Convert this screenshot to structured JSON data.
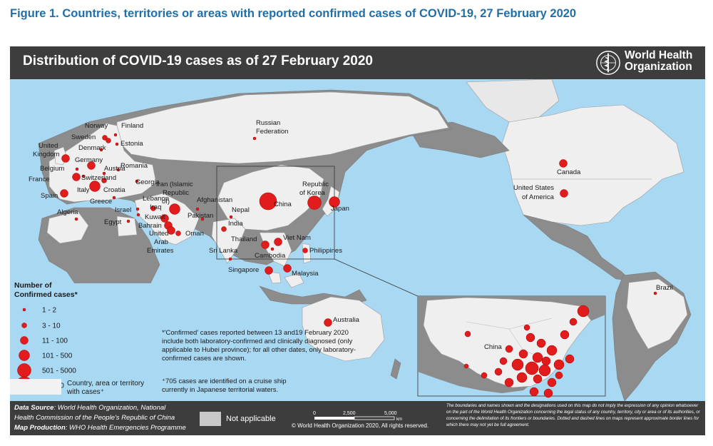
{
  "figure_title": "Figure 1. Countries, territories or areas with reported confirmed cases of COVID-19, 27 February 2020",
  "map_title": "Distribution of COVID-19 cases as of 27 February 2020",
  "who": {
    "line1": "World Health",
    "line2": "Organization"
  },
  "countries": [
    {
      "name": "Norway",
      "size": "3-10"
    },
    {
      "name": "Finland",
      "size": "1-2"
    },
    {
      "name": "Sweden",
      "size": "3-10"
    },
    {
      "name": "Estonia",
      "size": "1-2"
    },
    {
      "name": "Russian Federation",
      "size": "1-2"
    },
    {
      "name": "Denmark",
      "size": "1-2"
    },
    {
      "name": "United Kingdom",
      "size": "11-100"
    },
    {
      "name": "Germany",
      "size": "11-100"
    },
    {
      "name": "Belgium",
      "size": "1-2"
    },
    {
      "name": "Austria",
      "size": "1-2"
    },
    {
      "name": "Romania",
      "size": "1-2"
    },
    {
      "name": "Switzerland",
      "size": "1-2"
    },
    {
      "name": "France",
      "size": "11-100"
    },
    {
      "name": "Georgia",
      "size": "1-2"
    },
    {
      "name": "Italy",
      "size": "101-500"
    },
    {
      "name": "Croatia",
      "size": "3-10"
    },
    {
      "name": "Spain",
      "size": "11-100"
    },
    {
      "name": "Greece",
      "size": "1-2"
    },
    {
      "name": "Iran (Islamic Republic of)",
      "size": "101-500"
    },
    {
      "name": "Afghanistan",
      "size": "1-2"
    },
    {
      "name": "Lebanon",
      "size": "1-2"
    },
    {
      "name": "Israel",
      "size": "1-2"
    },
    {
      "name": "Iraq",
      "size": "3-10"
    },
    {
      "name": "Kuwait",
      "size": "11-100"
    },
    {
      "name": "Bahrain",
      "size": "11-100"
    },
    {
      "name": "Pakistan",
      "size": "1-2"
    },
    {
      "name": "Oman",
      "size": "3-10"
    },
    {
      "name": "United Arab Emirates",
      "size": "11-100"
    },
    {
      "name": "Egypt",
      "size": "1-2"
    },
    {
      "name": "Algeria",
      "size": "1-2"
    },
    {
      "name": "Nepal",
      "size": "1-2"
    },
    {
      "name": "India",
      "size": "3-10"
    },
    {
      "name": "China",
      "size": "> 5000"
    },
    {
      "name": "Republic of Korea",
      "size": "501-5000"
    },
    {
      "name": "Japan",
      "size": "101-500"
    },
    {
      "name": "Thailand",
      "size": "11-100"
    },
    {
      "name": "Viet Nam",
      "size": "11-100"
    },
    {
      "name": "Cambodia",
      "size": "1-2"
    },
    {
      "name": "Philippines",
      "size": "3-10"
    },
    {
      "name": "Sri Lanka",
      "size": "1-2"
    },
    {
      "name": "Singapore",
      "size": "11-100"
    },
    {
      "name": "Malaysia",
      "size": "11-100"
    },
    {
      "name": "Australia",
      "size": "11-100"
    },
    {
      "name": "Canada",
      "size": "11-100"
    },
    {
      "name": "United States of America",
      "size": "11-100"
    },
    {
      "name": "Brazil",
      "size": "1-2"
    }
  ],
  "inset_label": "China",
  "legend": {
    "title_line1": "Number of",
    "title_line2": "Confirmed cases*",
    "classes": [
      "1 - 2",
      "3 - 10",
      "11 - 100",
      "101 - 500",
      "501 - 5000",
      "> 5000"
    ],
    "country_box_line1": "Country, area or territory",
    "country_box_line2": "with cases⁺"
  },
  "notes": {
    "note1_lines": [
      "*'Confirmed' cases reported between 13 and19 February 2020",
      "include both laboratory-confirmed and clinically diagnosed (only",
      "applicable to Hubei province); for all other dates, only laboratory-",
      "confirmed cases are shown."
    ],
    "note2_lines": [
      "⁺705 cases are identified on a cruise ship",
      "currently in Japanese territorial waters."
    ]
  },
  "footer": {
    "source_label": "Data Source",
    "source_text": ": World Health Organization, National",
    "source_text2": "Health Commission of the People's Republic of China",
    "production_label": "Map Production",
    "production_text": ": WHO Health Emergencies Programme",
    "not_applicable": "Not applicable",
    "scale_ticks": [
      "0",
      "2,500",
      "5,000"
    ],
    "scale_unit": "km",
    "copyright": "© World Health Organization  2020,  All rights reserved.",
    "disclaimer": "The boundaries and names shown and the designations used on this map do not imply the expression of any opinion whatsoever on the part of the World Health Organization concerning the legal status of any country, territory, city or area or of its authorities, or concerning the delimitation of its frontiers or boundaries. Dotted and dashed lines on maps represent approximate border lines for which there may not yet be full agreement."
  },
  "colors": {
    "dot": "#e21c1c",
    "dot_stroke": "#a30000",
    "land_case": "#f2f2f2",
    "land_other": "#8c8c8c",
    "ocean": "#a9d8f2",
    "header": "#3d3d3d",
    "title": "#1f6fa8"
  }
}
